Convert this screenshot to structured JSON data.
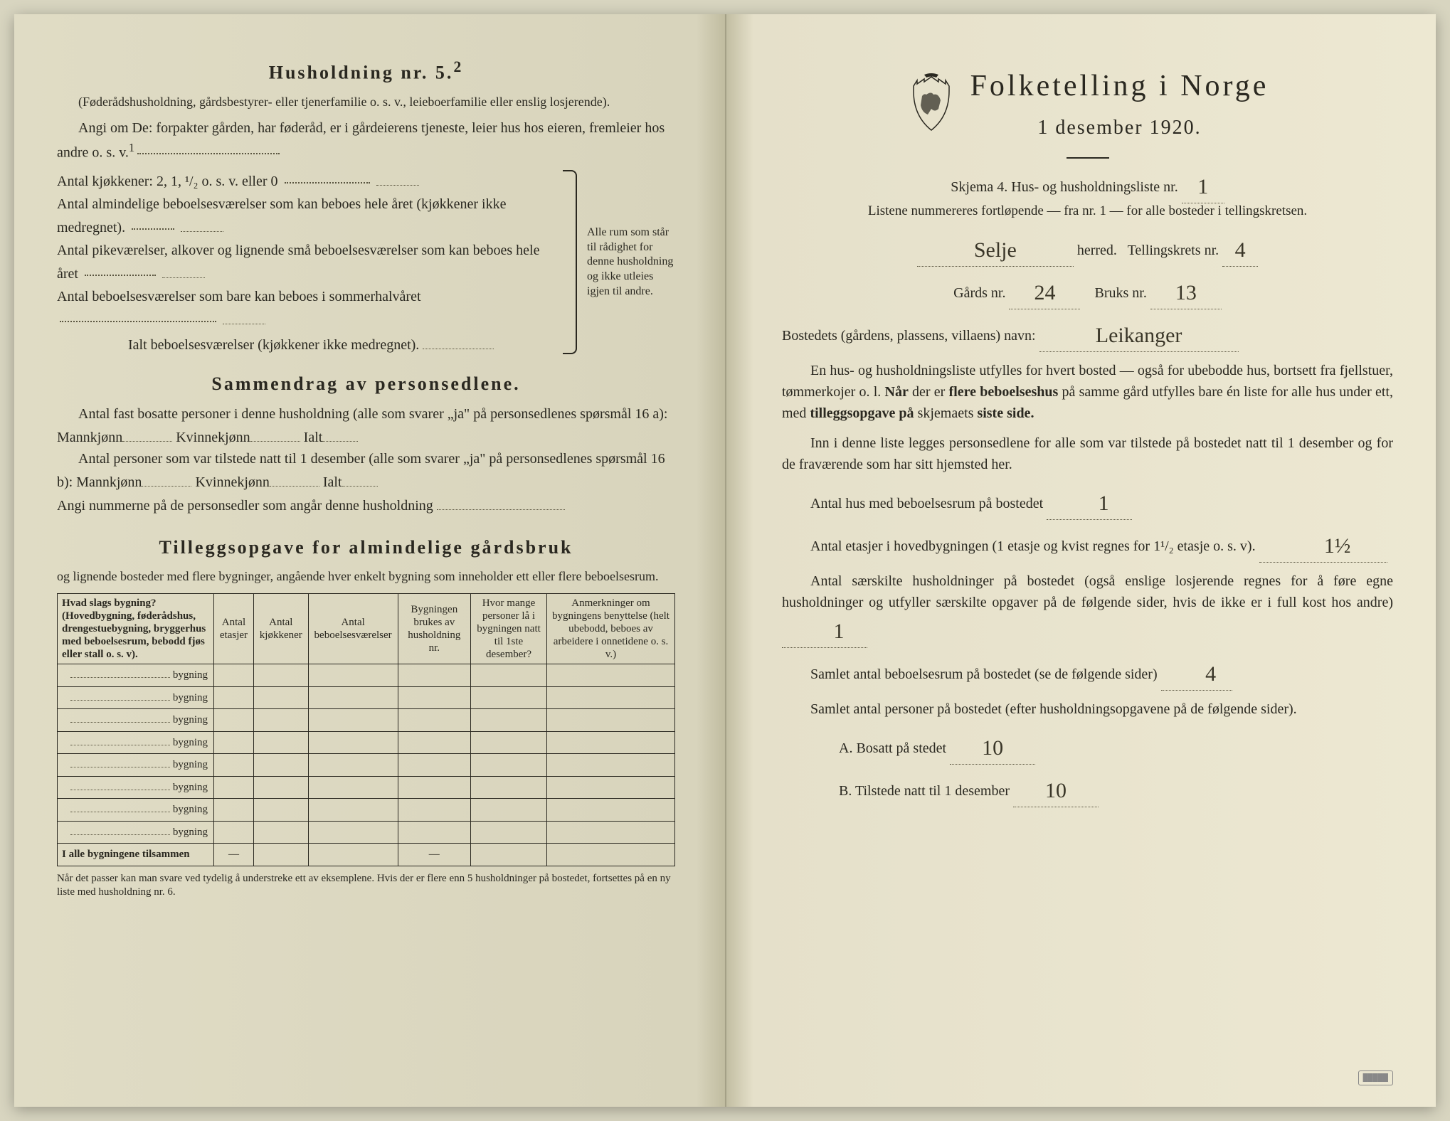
{
  "left": {
    "husholdning_title": "Husholdning nr. 5.",
    "husholdning_sup": "2",
    "husholdning_note": "(Føderådshusholdning, gårdsbestyrer- eller tjenerfamilie o. s. v., leieboerfamilie eller enslig losjerende).",
    "angi_line": "Angi om De: forpakter gården, har føderåd, er i gårdeierens tjeneste, leier hus hos eieren, fremleier hos andre o. s. v.",
    "angi_sup": "1",
    "kitchen_line": "Antal kjøkkener: 2, 1, ¹/₂ o. s. v. eller 0",
    "room_lines": [
      "Antal almindelige beboelsesværelser som kan beboes hele året (kjøkkener ikke medregnet).",
      "Antal pikeværelser, alkover og lignende små beboelsesværelser som kan beboes hele året",
      "Antal beboelsesværelser som bare kan beboes i sommerhalvåret"
    ],
    "ialt_line": "Ialt beboelsesværelser (kjøkkener ikke medregnet).",
    "bracket_text": "Alle rum som står til rådighet for denne husholdning og ikke utleies igjen til andre.",
    "sammendrag_title": "Sammendrag av personsedlene.",
    "sammen_p1a": "Antal fast bosatte personer i denne husholdning (alle som svarer „ja\" på personsedlenes spørsmål 16 a): Mannkjønn",
    "sammen_p1b": "Kvinnekjønn",
    "sammen_p1c": "Ialt",
    "sammen_p2a": "Antal personer som var tilstede natt til 1 desember (alle som svarer „ja\" på personsedlenes spørsmål 16 b): Mannkjønn",
    "sammen_p3": "Angi nummerne på de personsedler som angår denne husholdning",
    "tillegg_title": "Tilleggsopgave for almindelige gårdsbruk",
    "tillegg_sub": "og lignende bosteder med flere bygninger, angående hver enkelt bygning som inneholder ett eller flere beboelsesrum.",
    "table_headers": [
      "Hvad slags bygning?\n(Hovedbygning, føderådshus, drengestuebygning, bryggerhus med beboelsesrum, bebodd fjøs eller stall o. s. v).",
      "Antal etasjer",
      "Antal kjøkkener",
      "Antal beboelsesværelser",
      "Bygningen brukes av husholdning nr.",
      "Hvor mange personer lå i bygningen natt til 1ste desember?",
      "Anmerkninger om bygningens benyttelse (helt ubebodd, beboes av arbeidere i onnetidene o. s. v.)"
    ],
    "bygning_label": "bygning",
    "bygning_count": 8,
    "total_row": "I alle bygningene tilsammen",
    "footnote": "Når det passer kan man svare ved tydelig å understreke ett av eksemplene.\nHvis der er flere enn 5 husholdninger på bostedet, fortsettes på en ny liste med husholdning nr. 6."
  },
  "right": {
    "title": "Folketelling i Norge",
    "subtitle": "1 desember 1920.",
    "skjema_line": "Skjema 4. Hus- og husholdningsliste nr.",
    "skjema_nr": "1",
    "listene_line": "Listene nummereres fortløpende — fra nr. 1 — for alle bosteder i tellingskretsen.",
    "herred_value": "Selje",
    "herred_label": "herred.",
    "tellingskrets_label": "Tellingskrets nr.",
    "tellingskrets_nr": "4",
    "gards_label": "Gårds nr.",
    "gards_nr": "24",
    "bruks_label": "Bruks nr.",
    "bruks_nr": "13",
    "bosted_label": "Bostedets (gårdens, plassens, villaens) navn:",
    "bosted_value": "Leikanger",
    "para1": "En hus- og husholdningsliste utfylles for hvert bosted — også for ubebodde hus, bortsett fra fjellstuer, tømmerkojer o. l. Når der er flere beboelseshus på samme gård utfylles bare én liste for alle hus under ett, med tilleggsopgave på skjemaets siste side.",
    "para2": "Inn i denne liste legges personsedlene for alle som var tilstede på bostedet natt til 1 desember og for de fraværende som har sitt hjemsted her.",
    "field1_label": "Antal hus med beboelsesrum på bostedet",
    "field1_value": "1",
    "field2_label": "Antal etasjer i hovedbygningen (1 etasje og kvist regnes for 1¹/₂ etasje o. s. v).",
    "field2_value": "1½",
    "field3_label": "Antal særskilte husholdninger på bostedet (også enslige losjerende regnes for å føre egne husholdninger og utfyller særskilte opgaver på de følgende sider, hvis de ikke er i full kost hos andre)",
    "field3_value": "1",
    "field4_label": "Samlet antal beboelsesrum på bostedet (se de følgende sider)",
    "field4_value": "4",
    "field5_label": "Samlet antal personer på bostedet (efter husholdningsopgavene på de følgende sider).",
    "fieldA_label": "A. Bosatt på stedet",
    "fieldA_value": "10",
    "fieldB_label": "B. Tilstede natt til 1 desember",
    "fieldB_value": "10"
  },
  "style": {
    "bg": "#e0dcc5",
    "text": "#2a2820",
    "handwritten": "#3a3628"
  }
}
